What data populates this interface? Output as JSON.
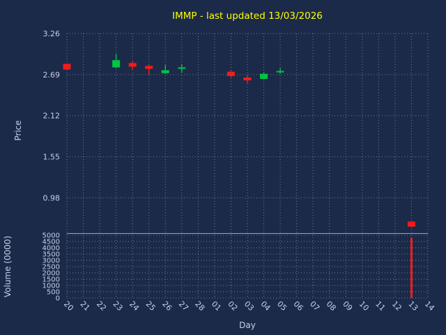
{
  "chart": {
    "title": "IMMP - last updated 13/03/2026",
    "xlabel": "Day",
    "price_ylabel": "Price",
    "volume_ylabel": "Volume (0000)"
  },
  "colors": {
    "background": "#1b2a49",
    "title": "#ffff00",
    "text": "#c6d0e6",
    "grid": "#c7d0e2",
    "up": "#00c544",
    "down": "#f51b1b",
    "volume_bar": "#f51b1b"
  },
  "chart_data": {
    "type": "candlestick",
    "title": "IMMP - last updated 13/03/2026",
    "xlabel": "Day",
    "ylabel": "Price",
    "ylabel2": "Volume (0000)",
    "legend": "none",
    "grid": "dotted",
    "categories": [
      "20",
      "21",
      "22",
      "23",
      "24",
      "25",
      "26",
      "27",
      "28",
      "01",
      "02",
      "03",
      "04",
      "05",
      "06",
      "07",
      "08",
      "09",
      "10",
      "11",
      "12",
      "13",
      "14"
    ],
    "price_axis": {
      "min": 0.5,
      "max": 3.26,
      "ticks": [
        3.26,
        2.69,
        2.12,
        1.55,
        0.98
      ]
    },
    "volume_axis": {
      "min": 0,
      "max": 5000,
      "ticks": [
        5000,
        4500,
        4000,
        3500,
        3000,
        2500,
        2000,
        1500,
        1000,
        500,
        0
      ]
    },
    "candles": [
      {
        "day": "20",
        "open": 2.84,
        "high": 2.84,
        "low": 2.76,
        "close": 2.76
      },
      {
        "day": "23",
        "open": 2.79,
        "high": 2.97,
        "low": 2.78,
        "close": 2.89
      },
      {
        "day": "24",
        "open": 2.85,
        "high": 2.88,
        "low": 2.76,
        "close": 2.8
      },
      {
        "day": "25",
        "open": 2.81,
        "high": 2.82,
        "low": 2.69,
        "close": 2.77
      },
      {
        "day": "26",
        "open": 2.71,
        "high": 2.82,
        "low": 2.7,
        "close": 2.75
      },
      {
        "day": "27",
        "open": 2.77,
        "high": 2.83,
        "low": 2.72,
        "close": 2.79
      },
      {
        "day": "02",
        "open": 2.73,
        "high": 2.74,
        "low": 2.65,
        "close": 2.67
      },
      {
        "day": "03",
        "open": 2.65,
        "high": 2.69,
        "low": 2.57,
        "close": 2.61
      },
      {
        "day": "04",
        "open": 2.63,
        "high": 2.72,
        "low": 2.62,
        "close": 2.7
      },
      {
        "day": "05",
        "open": 2.73,
        "high": 2.78,
        "low": 2.7,
        "close": 2.74
      },
      {
        "day": "13",
        "open": 0.65,
        "high": 0.65,
        "low": 0.57,
        "close": 0.58
      }
    ],
    "volumes": [
      {
        "day": "13",
        "volume": 4800
      }
    ]
  }
}
